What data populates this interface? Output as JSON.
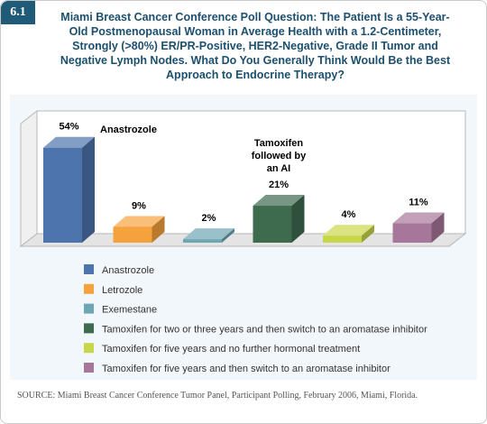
{
  "badge": "6.1",
  "chart_data": {
    "type": "bar3d",
    "title": "Miami Breast Cancer Conference Poll Question: The Patient Is a 55-Year-Old Postmenopausal Woman in Average Health with a 1.2-Centimeter, Strongly (>80%) ER/PR-Positive, HER2-Negative, Grade II Tumor and Negative Lymph Nodes. What Do You Generally Think Would Be the Best Approach to Endocrine Therapy?",
    "categories": [
      "Anastrozole",
      "Letrozole",
      "Exemestane",
      "Tamoxifen for two or three years and then switch to an aromatase inhibitor",
      "Tamoxifen for five years and no further hormonal treatment",
      "Tamoxifen for five years and then switch to an aromatase inhibitor"
    ],
    "values": [
      54,
      9,
      2,
      21,
      4,
      11
    ],
    "value_labels": [
      "54%",
      "9%",
      "2%",
      "21%",
      "4%",
      "11%"
    ],
    "colors": [
      "#4d74ac",
      "#f6a23c",
      "#6ea7b3",
      "#3e6a4e",
      "#c8d74a",
      "#a6779a"
    ],
    "annotations": [
      {
        "text": [
          "Anastrozole"
        ]
      },
      {
        "text": [
          "Tamoxifen",
          "followed by",
          "an AI"
        ]
      }
    ],
    "source": "SOURCE: Miami Breast Cancer Conference Tumor Panel, Participant Polling, February 2006, Miami, Florida."
  }
}
